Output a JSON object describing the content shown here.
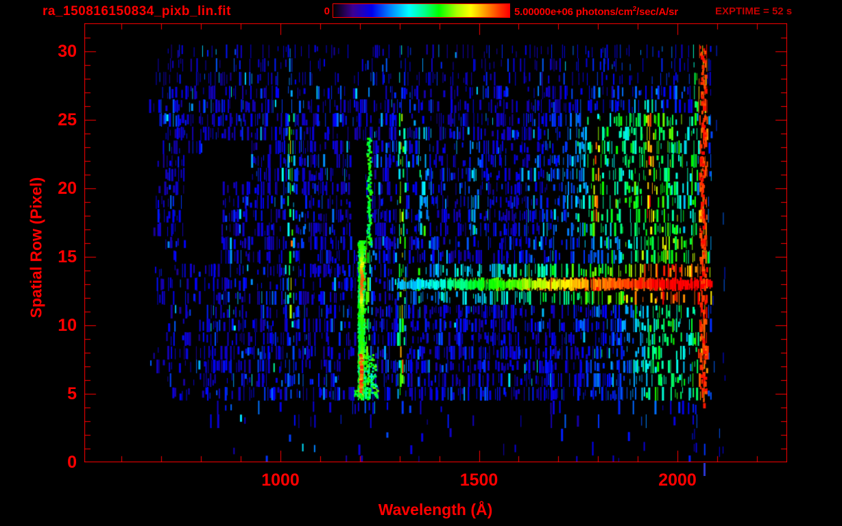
{
  "header": {
    "title": "ra_150816150834_pixb_lin.fit",
    "exptime_label": "EXPTIME = 52 s",
    "colorbar": {
      "min_label": "0",
      "max_label_prefix": "5.00000e+06 photons/cm",
      "max_label_sup": "2",
      "max_label_suffix": "/sec/A/sr"
    }
  },
  "colors": {
    "accent_red": "#ff0000",
    "dim_red": "#c40000",
    "background": "#000000"
  },
  "chart_data": {
    "type": "heatmap",
    "title": "ra_150816150834_pixb_lin.fit",
    "xlabel": "Wavelength (Å)",
    "ylabel": "Spatial Row (Pixel)",
    "x_ticks": [
      1000,
      1500,
      2000
    ],
    "x_minor_step": 100,
    "x_range": [
      506,
      2270
    ],
    "y_ticks": [
      0,
      5,
      10,
      15,
      20,
      25,
      30
    ],
    "y_minor_step": 1,
    "y_range": [
      0,
      32
    ],
    "grid": false,
    "legend_position": "none",
    "colorbar": {
      "min": 0,
      "max": 5000000,
      "units": "photons/cm^2/sec/A/sr",
      "colormap": "rainbow",
      "position": "top"
    },
    "exptime_seconds": 52,
    "colormap_stops": [
      [
        0.0,
        "#000000"
      ],
      [
        0.1,
        "#2a0060"
      ],
      [
        0.22,
        "#0000ff"
      ],
      [
        0.42,
        "#00ffff"
      ],
      [
        0.58,
        "#00ff00"
      ],
      [
        0.74,
        "#ffff00"
      ],
      [
        0.87,
        "#ff7000"
      ],
      [
        1.0,
        "#ff0000"
      ]
    ],
    "features": {
      "description": "Noisy 2D long-slit spectrum: blue speckle background over rows 5-30 from ~670-2085 A, bright Lyman-alpha emission column near 1216 A, O I line near 1304 A, line near 1025 A, bright continuum trace at spatial row ~13 ramping green-to-red toward 2080 A, saturated red column near 2052-2074 A, black masked rectangles near the Ly-a column and at 760-925 A rows 15-23",
      "data_extent": {
        "w_min": 665,
        "w_max": 2085,
        "row_min": 0,
        "row_max": 30.5
      },
      "sparse_tail": {
        "w_min": 2085,
        "w_max": 2120
      },
      "emission_lines": [
        {
          "center": 1025,
          "sigma": 5,
          "amp": 0.5,
          "row_min": 11,
          "row_max": 25,
          "out": 0.25
        },
        {
          "center": 1216,
          "sigma": 7,
          "amp": 0.45,
          "row_min": 4.5,
          "row_max": 16.5,
          "out": 0.05
        },
        {
          "center": 1304,
          "sigma": 6,
          "amp": 0.5,
          "row_min": 4.5,
          "row_max": 25.5,
          "out": 0.15
        },
        {
          "center": 1356,
          "sigma": 9,
          "amp": 0.22,
          "row_min": 17,
          "row_max": 24,
          "out": 0.05
        },
        {
          "center": 1486,
          "sigma": 9,
          "amp": 0.18,
          "row_min": 17,
          "row_max": 23,
          "out": 0.04
        },
        {
          "center": 1794,
          "sigma": 9,
          "amp": 0.4,
          "row_min": 16.5,
          "row_max": 24.5,
          "out": 0.1
        },
        {
          "center": 1929,
          "sigma": 7,
          "amp": 0.3,
          "row_min": 17,
          "row_max": 26,
          "out": 0.1
        },
        {
          "center": 1830,
          "sigma": 80,
          "amp": 0.26,
          "row_min": 16.5,
          "row_max": 25.5,
          "out": 0.08
        },
        {
          "center": 1975,
          "sigma": 70,
          "amp": 0.3,
          "row_min": 4.5,
          "row_max": 25.5,
          "out": 0.12
        }
      ],
      "masks": [
        {
          "w_min": 757,
          "w_max": 850,
          "row_min": 14.8,
          "row_max": 22.2
        },
        {
          "w_min": 810,
          "w_max": 925,
          "row_min": 20.6,
          "row_max": 23.2
        },
        {
          "w_min": 1176,
          "w_max": 1214,
          "row_min": 15.9,
          "row_max": 23.7
        },
        {
          "w_min": 1180,
          "w_max": 1199,
          "row_min": 9.6,
          "row_max": 12.2
        },
        {
          "w_min": 1150,
          "w_max": 1193,
          "row_min": 5.1,
          "row_max": 7.8
        }
      ],
      "trace": {
        "row": 13,
        "w_start": 1285,
        "w_full": 1985
      },
      "lya_core": {
        "w_min": 1199,
        "w_max": 1212,
        "row_min": 4.8,
        "row_max": 16.2
      },
      "lya_blob": {
        "w_min": 1193,
        "w_max": 1238,
        "row_min": 4.8,
        "row_max": 7.9
      },
      "green_edge": {
        "w_min": 1216,
        "w_max": 1231,
        "row_min": 15.9,
        "row_max": 23.7
      },
      "red_column": {
        "w_min": 2052,
        "w_max": 2074,
        "row_min": 4.2
      },
      "green_column": {
        "w_min": 2034,
        "w_max": 2049
      },
      "blue_bottom_column": {
        "w_min": 2064,
        "w_max": 2072,
        "row_max": 4
      }
    }
  }
}
